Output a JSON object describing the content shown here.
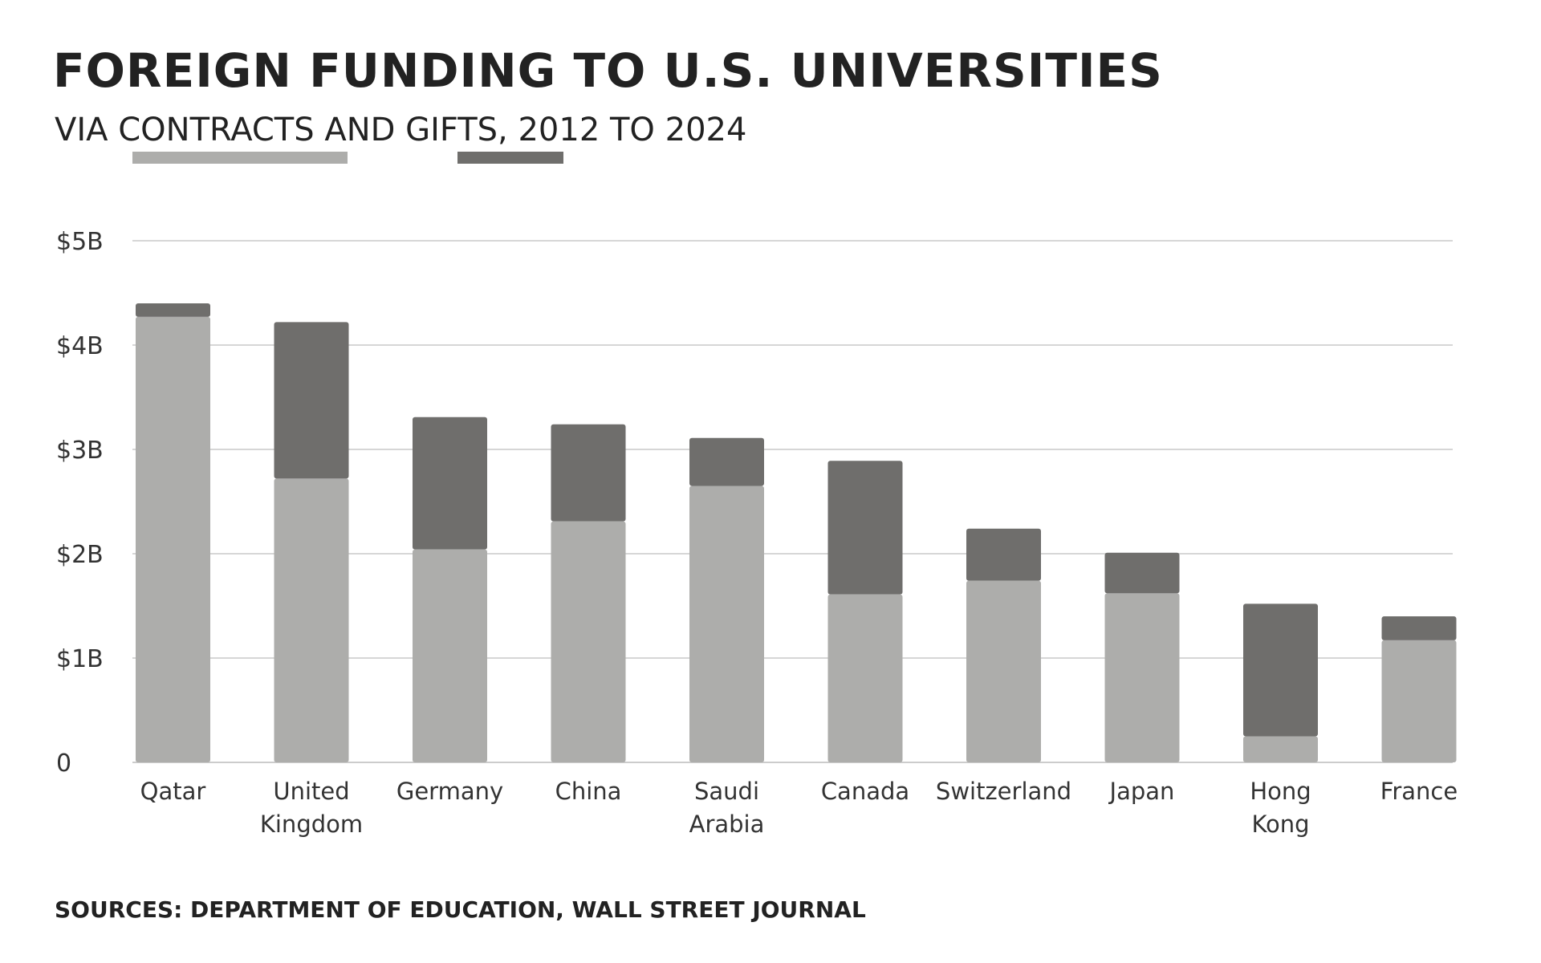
{
  "title": "FOREIGN FUNDING TO U.S. UNIVERSITIES",
  "subtitle": {
    "prefix": "VIA ",
    "contracts_word": "CONTRACTS",
    "middle": " AND ",
    "gifts_word": "GIFTS",
    "suffix": ", 2012 TO 2024"
  },
  "source": "SOURCES: DEPARTMENT OF EDUCATION, WALL STREET JOURNAL",
  "colors": {
    "contracts": "#adadab",
    "gifts": "#6f6e6c",
    "grid": "#d6d6d6",
    "axis": "#cccccc",
    "text": "#222222"
  },
  "chart_data": {
    "type": "bar",
    "stacked": true,
    "categories": [
      "Qatar",
      "United Kingdom",
      "Germany",
      "China",
      "Saudi Arabia",
      "Canada",
      "Switzerland",
      "Japan",
      "Hong Kong",
      "France"
    ],
    "category_label_lines": [
      [
        "Qatar"
      ],
      [
        "United",
        "Kingdom"
      ],
      [
        "Germany"
      ],
      [
        "China"
      ],
      [
        "Saudi",
        "Arabia"
      ],
      [
        "Canada"
      ],
      [
        "Switzerland"
      ],
      [
        "Japan"
      ],
      [
        "Hong",
        "Kong"
      ],
      [
        "France"
      ]
    ],
    "series": [
      {
        "name": "CONTRACTS",
        "values": [
          4.27,
          2.72,
          2.04,
          2.31,
          2.65,
          1.61,
          1.74,
          1.62,
          0.25,
          1.17
        ]
      },
      {
        "name": "GIFTS",
        "values": [
          0.13,
          1.5,
          1.27,
          0.93,
          0.46,
          1.28,
          0.5,
          0.39,
          1.27,
          0.23
        ]
      }
    ],
    "ylim": [
      0,
      5
    ],
    "yticks": [
      0,
      1,
      2,
      3,
      4,
      5
    ],
    "ytick_labels": [
      "0",
      "$1B",
      "$2B",
      "$3B",
      "$4B",
      "$5B"
    ],
    "xlabel": "",
    "ylabel": "",
    "grid": true,
    "legend": "in-subtitle-underlines"
  }
}
